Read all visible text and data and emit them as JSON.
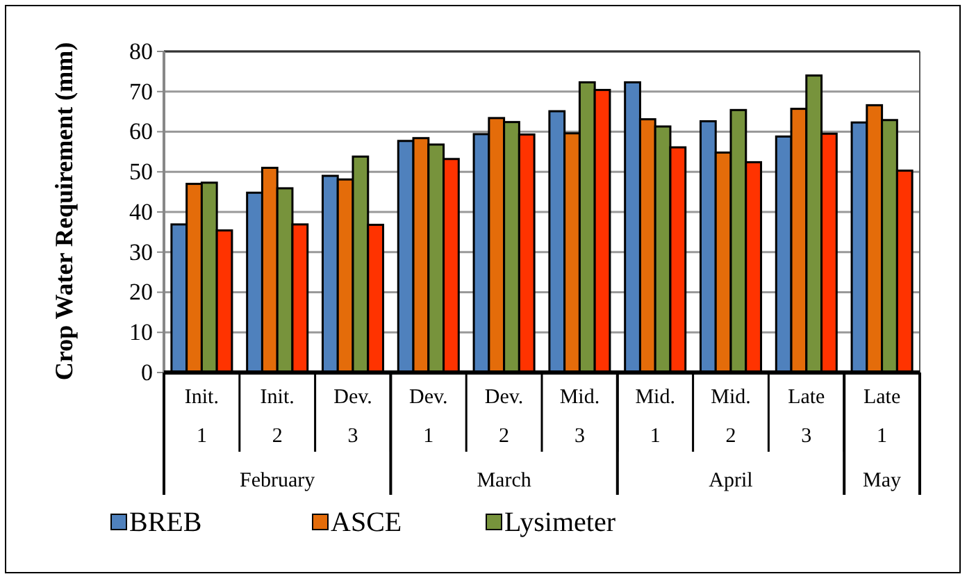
{
  "chart_data": {
    "type": "bar",
    "ylabel": "Crop Water Requirement (mm)",
    "categories": [
      "Init.\n1",
      "Init.\n2",
      "Dev.\n3",
      "Dev.\n1",
      "Dev.\n2",
      "Mid.\n3",
      "Mid.\n1",
      "Mid.\n2",
      "Late\n3",
      "Late\n1"
    ],
    "annotations": [
      "February",
      "March",
      "April",
      "May"
    ],
    "series": [
      {
        "name": "BREB",
        "color": "#4f81bd",
        "values": [
          36.9,
          44.8,
          49.0,
          57.7,
          59.4,
          65.1,
          72.3,
          62.6,
          58.8,
          62.3
        ]
      },
      {
        "name": "ASCE",
        "color": "#e46c0a",
        "values": [
          47.0,
          51.0,
          48.1,
          58.4,
          63.4,
          59.6,
          63.1,
          54.8,
          65.7,
          66.6
        ]
      },
      {
        "name": "Lysimeter",
        "color": "#77933c",
        "values": [
          47.3,
          45.9,
          53.8,
          56.8,
          62.4,
          72.3,
          61.3,
          65.4,
          74.0,
          62.9
        ]
      },
      {
        "color": "#ff3300",
        "values": [
          35.4,
          36.9,
          36.8,
          53.2,
          59.3,
          70.4,
          56.1,
          52.4,
          59.5,
          50.3
        ]
      }
    ],
    "ylim": [
      0,
      80
    ],
    "yticks": [
      0,
      10,
      20,
      30,
      40,
      50,
      60,
      70,
      80
    ],
    "grid": "y",
    "legend": "bottom"
  }
}
